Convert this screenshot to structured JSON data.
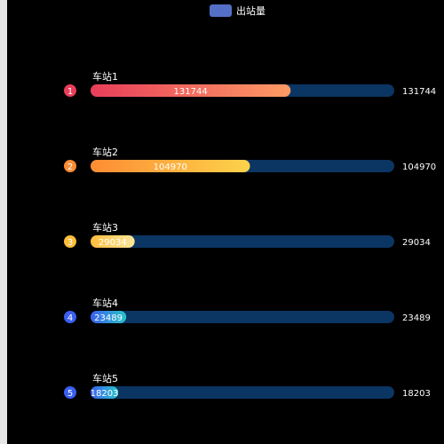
{
  "legend": {
    "label": "出站量",
    "color": "#5470c6"
  },
  "chart_data": {
    "type": "bar",
    "orientation": "horizontal",
    "series": [
      {
        "name": "出站量",
        "values": [
          131744,
          104970,
          29034,
          23489,
          18203
        ]
      }
    ],
    "categories": [
      "车站1",
      "车站2",
      "车站3",
      "车站4",
      "车站5"
    ],
    "ranks": [
      "1",
      "2",
      "3",
      "4",
      "5"
    ],
    "value_labels": [
      "131744",
      "104970",
      "29034",
      "23489",
      "18203"
    ],
    "max_value": 200000,
    "track_color": "#0b3563",
    "bar_gradients": [
      [
        "#e83e5a",
        "#fd9b64"
      ],
      [
        "#fd8c34",
        "#fdd34a"
      ],
      [
        "#fdbd3a",
        "#fbe79b"
      ],
      [
        "#3a5ff0",
        "#29c4c9"
      ],
      [
        "#3a5ff0",
        "#29c4c9"
      ]
    ],
    "rank_colors": [
      "#e83e5a",
      "#fd8c34",
      "#fdbd3a",
      "#3a5ff0",
      "#3a5ff0"
    ],
    "text_color": "#ffffff"
  }
}
